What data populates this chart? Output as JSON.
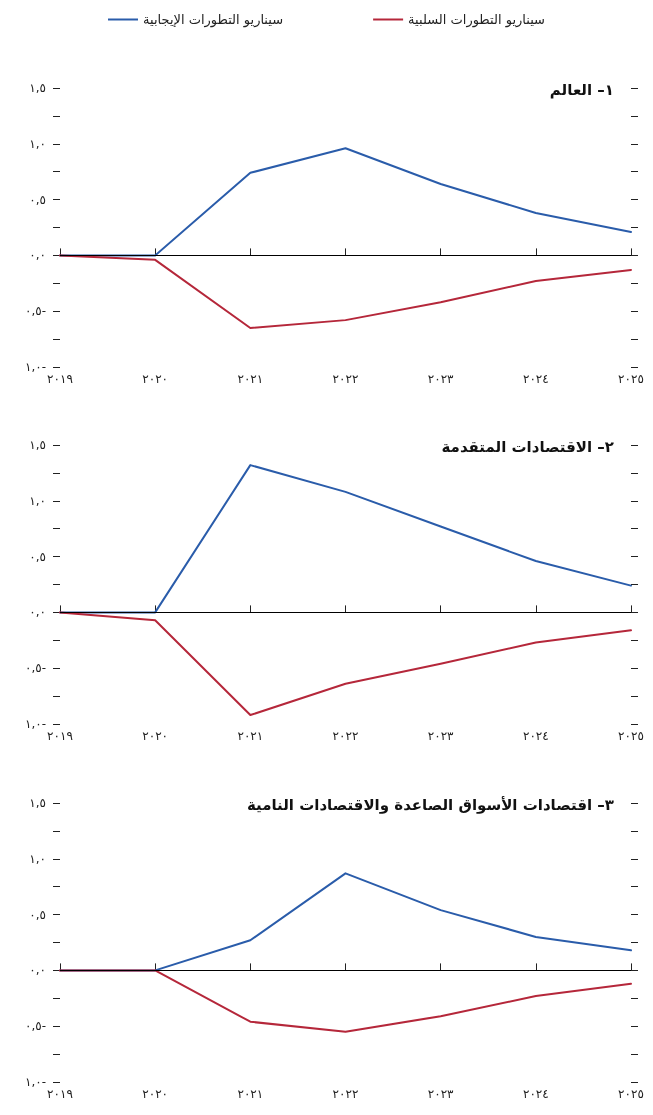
{
  "chart_data": [
    {
      "type": "line",
      "title": "١– العالم",
      "categories": [
        "٢٠١٩",
        "٢٠٢٠",
        "٢٠٢١",
        "٢٠٢٢",
        "٢٠٢٣",
        "٢٠٢٤",
        "٢٠٢٥"
      ],
      "series": [
        {
          "name": "سيناريو التطورات الإيجابية",
          "color": "#2a5caa",
          "values": [
            0,
            0,
            0.74,
            0.96,
            0.64,
            0.38,
            0.21
          ]
        },
        {
          "name": "سيناريو التطورات السلبية",
          "color": "#b5273a",
          "values": [
            0,
            -0.04,
            -0.65,
            -0.58,
            -0.42,
            -0.23,
            -0.13
          ]
        }
      ],
      "ylim": [
        -1,
        1.5
      ],
      "yticks": [
        {
          "value": -1,
          "label": "١,٠-"
        },
        {
          "value": -0.75,
          "label": null
        },
        {
          "value": -0.5,
          "label": "٠,٥-"
        },
        {
          "value": -0.25,
          "label": null
        },
        {
          "value": 0,
          "label": "٠,٠"
        },
        {
          "value": 0.25,
          "label": null
        },
        {
          "value": 0.5,
          "label": "٠,٥"
        },
        {
          "value": 0.75,
          "label": null
        },
        {
          "value": 1,
          "label": "١,٠"
        },
        {
          "value": 1.25,
          "label": null
        },
        {
          "value": 1.5,
          "label": "١,٥"
        }
      ],
      "ref_lines": [
        {
          "axis": "y",
          "value": 0,
          "color": "#000000"
        }
      ],
      "grid": false,
      "legend": "top",
      "marker": "none",
      "line_style": "solid"
    },
    {
      "type": "line",
      "title": "٢– الاقتصادات المتقدمة",
      "categories": [
        "٢٠١٩",
        "٢٠٢٠",
        "٢٠٢١",
        "٢٠٢٢",
        "٢٠٢٣",
        "٢٠٢٤",
        "٢٠٢٥"
      ],
      "series": [
        {
          "color": "#2a5caa",
          "values": [
            0,
            0,
            1.32,
            1.08,
            0.77,
            0.46,
            0.24
          ]
        },
        {
          "color": "#b5273a",
          "values": [
            0,
            -0.07,
            -0.92,
            -0.64,
            -0.46,
            -0.27,
            -0.16
          ]
        }
      ],
      "ylim": [
        -1,
        1.5
      ],
      "yticks": [
        {
          "value": -1,
          "label": "١,٠-"
        },
        {
          "value": -0.75,
          "label": null
        },
        {
          "value": -0.5,
          "label": "٠,٥-"
        },
        {
          "value": -0.25,
          "label": null
        },
        {
          "value": 0,
          "label": "٠,٠"
        },
        {
          "value": 0.25,
          "label": null
        },
        {
          "value": 0.5,
          "label": "٠,٥"
        },
        {
          "value": 0.75,
          "label": null
        },
        {
          "value": 1,
          "label": "١,٠"
        },
        {
          "value": 1.25,
          "label": null
        },
        {
          "value": 1.5,
          "label": "١,٥"
        }
      ],
      "ref_lines": [
        {
          "axis": "y",
          "value": 0,
          "color": "#000000"
        }
      ],
      "grid": false,
      "marker": "none",
      "line_style": "solid"
    },
    {
      "type": "line",
      "title": "٣– اقتصادات الأسواق الصاعدة والاقتصادات النامية",
      "categories": [
        "٢٠١٩",
        "٢٠٢٠",
        "٢٠٢١",
        "٢٠٢٢",
        "٢٠٢٣",
        "٢٠٢٤",
        "٢٠٢٥"
      ],
      "series": [
        {
          "color": "#2a5caa",
          "values": [
            0,
            0,
            0.27,
            0.87,
            0.54,
            0.3,
            0.18
          ]
        },
        {
          "color": "#b5273a",
          "values": [
            0,
            0,
            -0.46,
            -0.55,
            -0.41,
            -0.23,
            -0.12
          ]
        }
      ],
      "ylim": [
        -1,
        1.5
      ],
      "yticks": [
        {
          "value": -1,
          "label": "١,٠-"
        },
        {
          "value": -0.75,
          "label": null
        },
        {
          "value": -0.5,
          "label": "٠,٥-"
        },
        {
          "value": -0.25,
          "label": null
        },
        {
          "value": 0,
          "label": "٠,٠"
        },
        {
          "value": 0.25,
          "label": null
        },
        {
          "value": 0.5,
          "label": "٠,٥"
        },
        {
          "value": 0.75,
          "label": null
        },
        {
          "value": 1,
          "label": "١,٠"
        },
        {
          "value": 1.25,
          "label": null
        },
        {
          "value": 1.5,
          "label": "١,٥"
        }
      ],
      "ref_lines": [
        {
          "axis": "y",
          "value": 0,
          "color": "#000000"
        }
      ],
      "grid": false,
      "marker": "none",
      "line_style": "solid"
    }
  ]
}
